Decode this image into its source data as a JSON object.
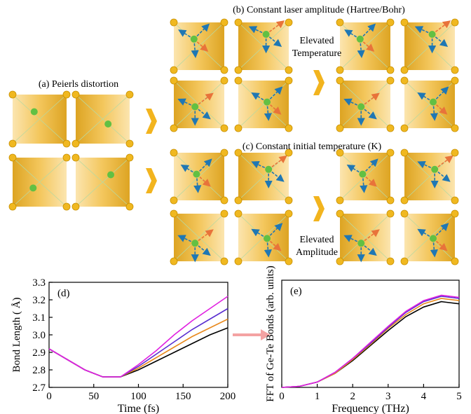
{
  "diagram": {
    "panel_a": "(a) Peierls distortion",
    "panel_b": "(b) Constant laser amplitude (Hartree/Bohr)",
    "panel_c": "(c) Constant initial temperature (K)",
    "note_b": [
      "Elevated",
      "Temperature"
    ],
    "note_c": [
      "Elevated",
      "Amplitude"
    ]
  },
  "chart_data": [
    {
      "type": "line",
      "panel": "(d)",
      "xlabel": "Time (fs)",
      "ylabel": "Bond Length ( Å)",
      "x": [
        0,
        20,
        40,
        60,
        80,
        100,
        120,
        140,
        160,
        180,
        200
      ],
      "xlim": [
        0,
        200
      ],
      "xticks": [
        0,
        50,
        100,
        150,
        200
      ],
      "ylim": [
        2.7,
        3.3
      ],
      "yticks": [
        2.7,
        2.8,
        2.9,
        {
          "value": 3,
          "label": "3.0"
        },
        3.1,
        3.2,
        3.3
      ],
      "series": [
        {
          "color": "#000000",
          "values": [
            2.92,
            2.86,
            2.8,
            2.76,
            2.76,
            2.8,
            2.85,
            2.9,
            2.95,
            3.0,
            3.04
          ]
        },
        {
          "color": "#e8891d",
          "values": [
            2.92,
            2.86,
            2.8,
            2.76,
            2.76,
            2.81,
            2.87,
            2.93,
            2.99,
            3.04,
            3.09
          ]
        },
        {
          "color": "#5a2fd0",
          "values": [
            2.92,
            2.86,
            2.8,
            2.76,
            2.76,
            2.82,
            2.89,
            2.96,
            3.03,
            3.09,
            3.15
          ]
        },
        {
          "color": "#e020e0",
          "values": [
            2.92,
            2.86,
            2.8,
            2.76,
            2.76,
            2.83,
            2.91,
            3.0,
            3.08,
            3.15,
            3.22
          ]
        }
      ]
    },
    {
      "type": "line",
      "panel": "(e)",
      "xlabel": "Frequency (THz)",
      "ylabel": "FFT of Ge-Te Bonds (arb. units)",
      "x": [
        0,
        0.5,
        1,
        1.5,
        2,
        2.5,
        3,
        3.5,
        4,
        4.5,
        5
      ],
      "xlim": [
        0,
        5
      ],
      "xticks": [
        0,
        1,
        2,
        3,
        4,
        5
      ],
      "ylim": [
        0,
        1
      ],
      "series": [
        {
          "color": "#000000",
          "values": [
            0,
            0.01,
            0.05,
            0.13,
            0.25,
            0.39,
            0.53,
            0.66,
            0.75,
            0.8,
            0.78
          ]
        },
        {
          "color": "#e8891d",
          "values": [
            0,
            0.01,
            0.05,
            0.13,
            0.26,
            0.4,
            0.55,
            0.68,
            0.78,
            0.83,
            0.81
          ]
        },
        {
          "color": "#5a2fd0",
          "values": [
            0,
            0.01,
            0.05,
            0.14,
            0.27,
            0.41,
            0.56,
            0.7,
            0.8,
            0.85,
            0.83
          ]
        },
        {
          "color": "#e020e0",
          "values": [
            0,
            0.01,
            0.05,
            0.14,
            0.27,
            0.42,
            0.57,
            0.71,
            0.81,
            0.86,
            0.84
          ]
        }
      ]
    }
  ]
}
